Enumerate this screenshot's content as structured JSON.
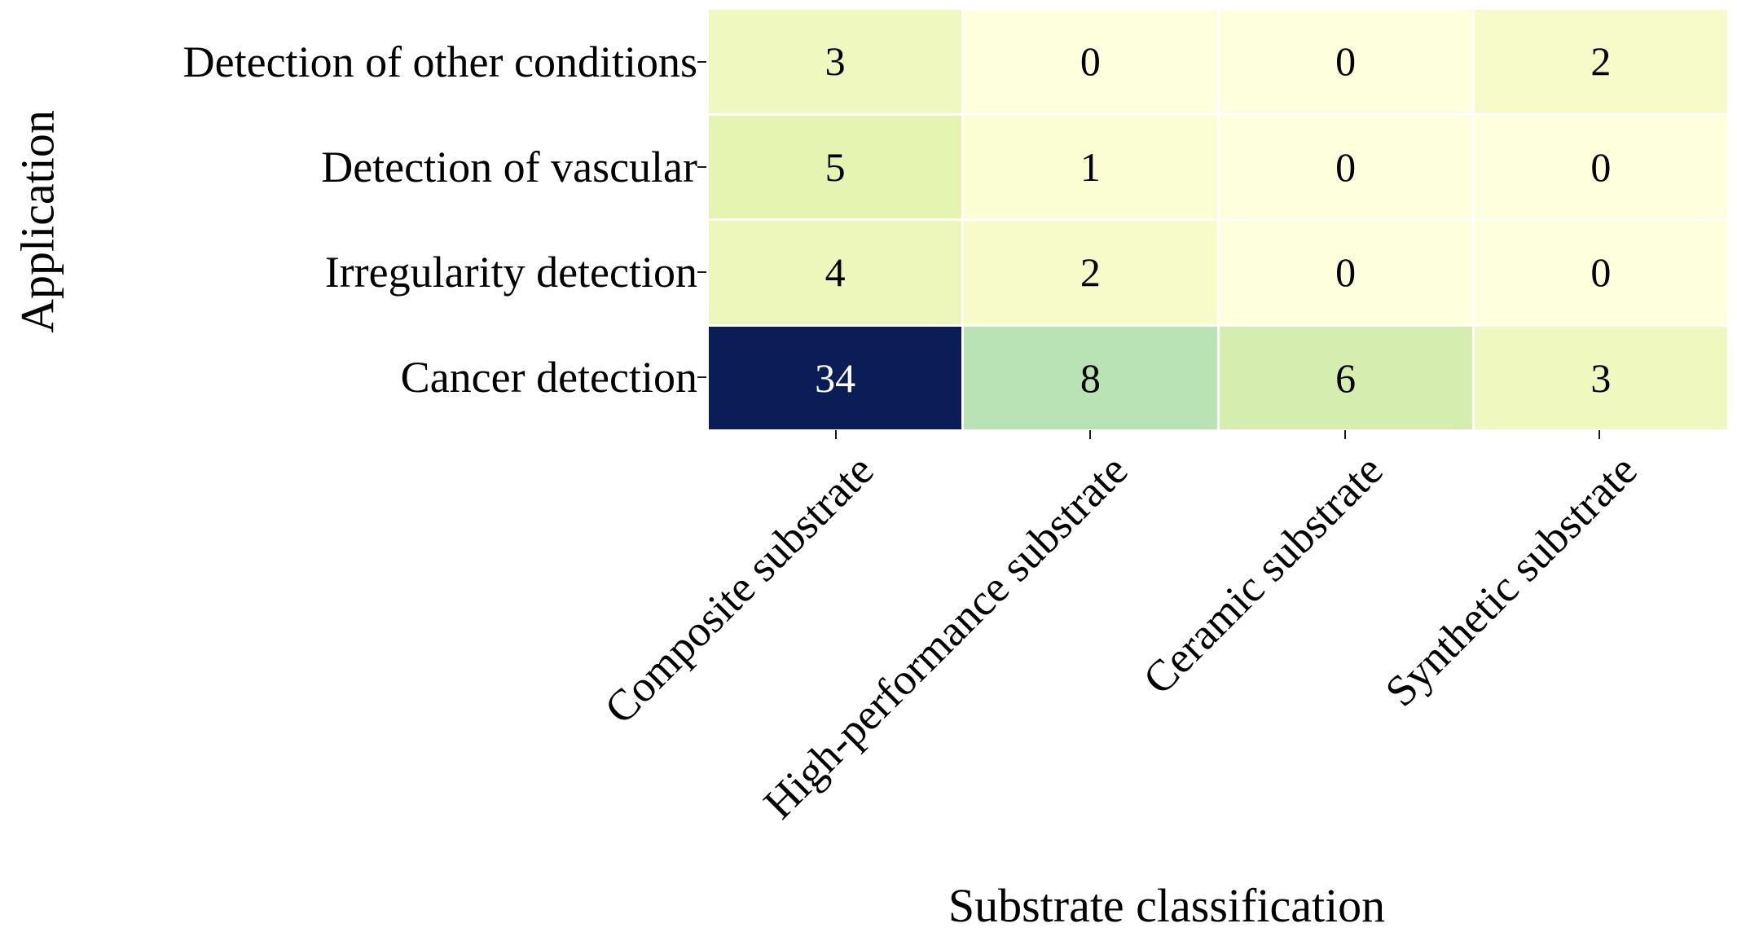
{
  "chart_data": {
    "type": "heatmap",
    "title": "",
    "xlabel": "Substrate classification",
    "ylabel": "Application",
    "columns": [
      "Composite substrate",
      "High-performance substrate",
      "Ceramic substrate",
      "Synthetic substrate"
    ],
    "rows": [
      "Detection of other conditions",
      "Detection of vascular",
      "Irregularity detection",
      "Cancer detection"
    ],
    "values": [
      [
        3,
        0,
        0,
        2
      ],
      [
        5,
        1,
        0,
        0
      ],
      [
        4,
        2,
        0,
        0
      ],
      [
        34,
        8,
        6,
        3
      ]
    ],
    "value_range": [
      0,
      34
    ],
    "colormap_name": "YlGnBu",
    "annotations_shown": true,
    "legend": "none",
    "grid_gap_color": "#ffffff",
    "value_colors": {
      "0": "#feffdc",
      "1": "#fbfdd3",
      "2": "#f7fbc9",
      "3": "#eff8bf",
      "4": "#edf7bb",
      "5": "#e6f4b1",
      "6": "#d5eeb0",
      "8": "#b9e3b4",
      "34": "#0b1d56"
    },
    "value_text_colors": {
      "default": "#000000",
      "34": "#ffffff"
    }
  }
}
